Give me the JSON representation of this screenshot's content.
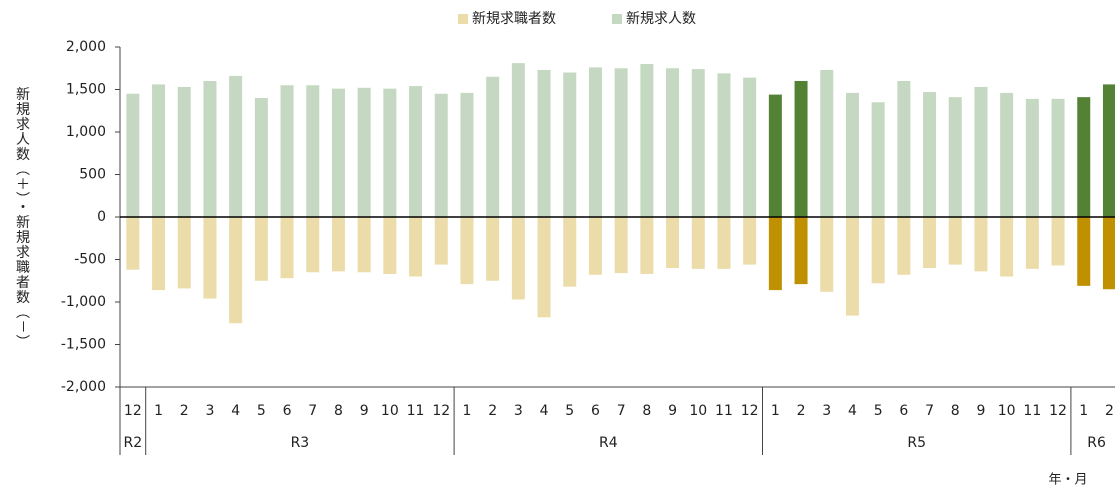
{
  "chart_data": {
    "type": "bar",
    "y_label": "新規求人数（＋）・新規求職者数（－）",
    "x_label": "年・月",
    "groups": [
      {
        "label": "R2",
        "categories": [
          "12"
        ]
      },
      {
        "label": "R3",
        "categories": [
          "1",
          "2",
          "3",
          "4",
          "5",
          "6",
          "7",
          "8",
          "9",
          "10",
          "11",
          "12"
        ]
      },
      {
        "label": "R4",
        "categories": [
          "1",
          "2",
          "3",
          "4",
          "5",
          "6",
          "7",
          "8",
          "9",
          "10",
          "11",
          "12"
        ]
      },
      {
        "label": "R5",
        "categories": [
          "1",
          "2",
          "3",
          "4",
          "5",
          "6",
          "7",
          "8",
          "9",
          "10",
          "11",
          "12"
        ]
      },
      {
        "label": "R6",
        "categories": [
          "1",
          "2"
        ]
      }
    ],
    "series": [
      {
        "name": "新規求職者数",
        "color": "#ecdcaa",
        "values": [
          -620,
          -860,
          -840,
          -960,
          -1250,
          -750,
          -720,
          -650,
          -640,
          -650,
          -670,
          -700,
          -560,
          -790,
          -750,
          -970,
          -1180,
          -820,
          -680,
          -660,
          -670,
          -600,
          -610,
          -610,
          -560,
          -860,
          -790,
          -880,
          -1160,
          -780,
          -680,
          -600,
          -560,
          -640,
          -700,
          -610,
          -570,
          -810,
          -850
        ],
        "colors": [
          "#ecdcaa",
          "#ecdcaa",
          "#ecdcaa",
          "#ecdcaa",
          "#ecdcaa",
          "#ecdcaa",
          "#ecdcaa",
          "#ecdcaa",
          "#ecdcaa",
          "#ecdcaa",
          "#ecdcaa",
          "#ecdcaa",
          "#ecdcaa",
          "#ecdcaa",
          "#ecdcaa",
          "#ecdcaa",
          "#ecdcaa",
          "#ecdcaa",
          "#ecdcaa",
          "#ecdcaa",
          "#ecdcaa",
          "#ecdcaa",
          "#ecdcaa",
          "#ecdcaa",
          "#ecdcaa",
          "#bf9000",
          "#bf9000",
          "#ecdcaa",
          "#ecdcaa",
          "#ecdcaa",
          "#ecdcaa",
          "#ecdcaa",
          "#ecdcaa",
          "#ecdcaa",
          "#ecdcaa",
          "#ecdcaa",
          "#ecdcaa",
          "#bf9000",
          "#bf9000"
        ]
      },
      {
        "name": "新規求人数",
        "color": "#c5d8c1",
        "values": [
          1450,
          1560,
          1530,
          1600,
          1660,
          1400,
          1550,
          1550,
          1510,
          1520,
          1510,
          1540,
          1450,
          1460,
          1650,
          1810,
          1730,
          1700,
          1760,
          1750,
          1800,
          1750,
          1740,
          1690,
          1640,
          1440,
          1600,
          1730,
          1460,
          1350,
          1600,
          1470,
          1410,
          1530,
          1460,
          1390,
          1390,
          1410,
          1560
        ],
        "colors": [
          "#c5d8c1",
          "#c5d8c1",
          "#c5d8c1",
          "#c5d8c1",
          "#c5d8c1",
          "#c5d8c1",
          "#c5d8c1",
          "#c5d8c1",
          "#c5d8c1",
          "#c5d8c1",
          "#c5d8c1",
          "#c5d8c1",
          "#c5d8c1",
          "#c5d8c1",
          "#c5d8c1",
          "#c5d8c1",
          "#c5d8c1",
          "#c5d8c1",
          "#c5d8c1",
          "#c5d8c1",
          "#c5d8c1",
          "#c5d8c1",
          "#c5d8c1",
          "#c5d8c1",
          "#c5d8c1",
          "#548235",
          "#548235",
          "#c5d8c1",
          "#c5d8c1",
          "#c5d8c1",
          "#c5d8c1",
          "#c5d8c1",
          "#c5d8c1",
          "#c5d8c1",
          "#c5d8c1",
          "#c5d8c1",
          "#c5d8c1",
          "#548235",
          "#548235"
        ]
      }
    ],
    "ylim": [
      -2000,
      2000
    ],
    "yticks": [
      {
        "value": 2000,
        "label": "2,000"
      },
      {
        "value": 1500,
        "label": "1,500"
      },
      {
        "value": 1000,
        "label": "1,000"
      },
      500,
      0,
      -500,
      {
        "value": -1000,
        "label": "-1,000"
      },
      {
        "value": -1500,
        "label": "-1,500"
      },
      {
        "value": -2000,
        "label": "-2,000"
      }
    ],
    "negative_tick_color": "#ff0000",
    "legend": "top"
  }
}
